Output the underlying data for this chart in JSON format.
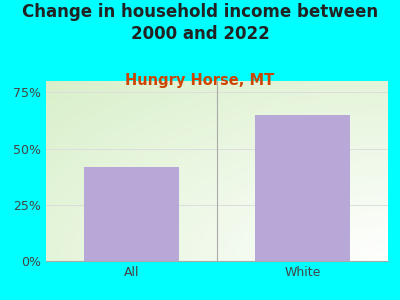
{
  "categories": [
    "All",
    "White"
  ],
  "values": [
    42,
    65
  ],
  "bar_color": "#b8a8d8",
  "title": "Change in household income between\n2000 and 2022",
  "subtitle": "Hungry Horse, MT",
  "title_color": "#222222",
  "subtitle_color": "#cc4400",
  "bg_color": "#00ffff",
  "plot_bg_topleft": "#d8eec8",
  "plot_bg_bottomright": "#f8fff8",
  "ylim": [
    0,
    80
  ],
  "yticks": [
    0,
    25,
    50,
    75
  ],
  "yticklabels": [
    "0%",
    "25%",
    "50%",
    "75%"
  ],
  "gridline_color": "#dddddd",
  "title_fontsize": 12,
  "subtitle_fontsize": 10.5,
  "tick_fontsize": 9,
  "tick_color": "#444444"
}
